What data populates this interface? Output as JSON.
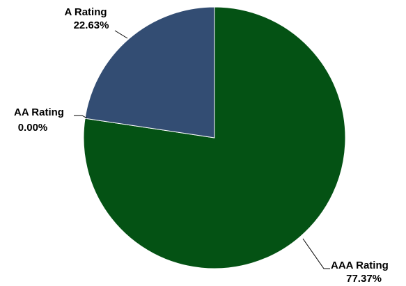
{
  "chart_data": {
    "type": "pie",
    "categories": [
      "AAA Rating",
      "A Rating",
      "AA Rating"
    ],
    "values": [
      77.37,
      22.63,
      0.0
    ],
    "value_labels": [
      "77.37%",
      "22.63%",
      "0.00%"
    ],
    "colors": [
      "#045214",
      "#334d73",
      "#4a7a3a"
    ],
    "start_angle": "12 o'clock",
    "direction": "clockwise",
    "legend": "none",
    "title": ""
  }
}
